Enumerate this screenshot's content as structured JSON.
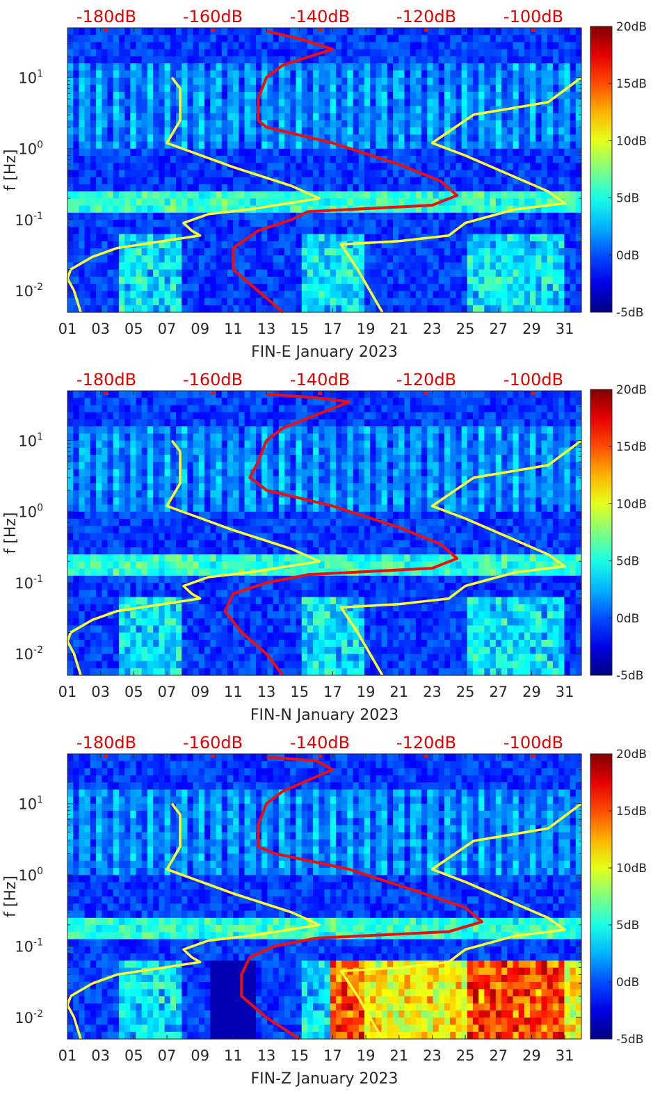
{
  "chart_data": [
    {
      "type": "heatmap",
      "station": "FIN-E",
      "xlabel": "FIN-E January 2023",
      "ylabel": "f [Hz]",
      "x_ticks": [
        "01",
        "03",
        "05",
        "07",
        "09",
        "11",
        "13",
        "15",
        "17",
        "19",
        "21",
        "23",
        "25",
        "27",
        "29",
        "31"
      ],
      "x_range_days": [
        1,
        32
      ],
      "y_scale": "log",
      "y_range_hz": [
        0.005,
        50
      ],
      "y_ticks": [
        {
          "value": 0.01,
          "base": "10",
          "exp": "-2"
        },
        {
          "value": 0.1,
          "base": "10",
          "exp": "-1"
        },
        {
          "value": 1,
          "base": "10",
          "exp": "0"
        },
        {
          "value": 10,
          "base": "10",
          "exp": "1"
        }
      ],
      "top_db_labels": [
        "-180dB",
        "-160dB",
        "-140dB",
        "-120dB",
        "-100dB"
      ],
      "colorbar": {
        "range_db": [
          -5,
          20
        ],
        "ticks": [
          "20dB",
          "15dB",
          "10dB",
          "5dB",
          "0dB",
          "-5dB"
        ]
      },
      "series": [
        {
          "name": "yellow noise model (left)",
          "color": "#ffff33",
          "points": [
            [
              7.3,
              10
            ],
            [
              7.8,
              7
            ],
            [
              7.8,
              2.5
            ],
            [
              7.0,
              1.2
            ],
            [
              11,
              0.55
            ],
            [
              14.5,
              0.3
            ],
            [
              16.2,
              0.2
            ],
            [
              12,
              0.14
            ],
            [
              9.5,
              0.12
            ],
            [
              8.0,
              0.09
            ],
            [
              8.5,
              0.07
            ],
            [
              9,
              0.06
            ],
            [
              4,
              0.04
            ],
            [
              2.5,
              0.03
            ],
            [
              1.2,
              0.02
            ],
            [
              1,
              0.015
            ],
            [
              1.4,
              0.01
            ],
            [
              1.8,
              0.005
            ]
          ]
        },
        {
          "name": "yellow noise model (right)",
          "color": "#ffff33",
          "points": [
            [
              32,
              10
            ],
            [
              30,
              4.5
            ],
            [
              25.5,
              3
            ],
            [
              23,
              1.2
            ],
            [
              25,
              0.8
            ],
            [
              30,
              0.25
            ],
            [
              31,
              0.17
            ],
            [
              28,
              0.14
            ],
            [
              25,
              0.09
            ],
            [
              24,
              0.06
            ],
            [
              21,
              0.05
            ],
            [
              17.5,
              0.045
            ],
            [
              18.5,
              0.02
            ],
            [
              20,
              0.005
            ]
          ]
        },
        {
          "name": "red median PSD",
          "color": "#e81010",
          "points": [
            [
              13,
              45
            ],
            [
              15,
              35
            ],
            [
              17,
              25
            ],
            [
              14,
              15
            ],
            [
              13,
              10
            ],
            [
              12.5,
              5
            ],
            [
              12.5,
              3
            ],
            [
              12.5,
              2.5
            ],
            [
              13,
              2
            ],
            [
              17,
              1.2
            ],
            [
              21,
              0.6
            ],
            [
              23.5,
              0.35
            ],
            [
              24.5,
              0.22
            ],
            [
              23,
              0.16
            ],
            [
              15.5,
              0.13
            ],
            [
              14.5,
              0.1
            ],
            [
              12.5,
              0.07
            ],
            [
              11,
              0.04
            ],
            [
              11,
              0.02
            ],
            [
              12.5,
              0.01
            ],
            [
              14,
              0.005
            ]
          ]
        }
      ]
    },
    {
      "type": "heatmap",
      "station": "FIN-N",
      "xlabel": "FIN-N January 2023",
      "ylabel": "f [Hz]",
      "x_ticks": [
        "01",
        "03",
        "05",
        "07",
        "09",
        "11",
        "13",
        "15",
        "17",
        "19",
        "21",
        "23",
        "25",
        "27",
        "29",
        "31"
      ],
      "x_range_days": [
        1,
        32
      ],
      "y_scale": "log",
      "y_range_hz": [
        0.005,
        50
      ],
      "y_ticks": [
        {
          "value": 0.01,
          "base": "10",
          "exp": "-2"
        },
        {
          "value": 0.1,
          "base": "10",
          "exp": "-1"
        },
        {
          "value": 1,
          "base": "10",
          "exp": "0"
        },
        {
          "value": 10,
          "base": "10",
          "exp": "1"
        }
      ],
      "top_db_labels": [
        "-180dB",
        "-160dB",
        "-140dB",
        "-120dB",
        "-100dB"
      ],
      "colorbar": {
        "range_db": [
          -5,
          20
        ],
        "ticks": [
          "20dB",
          "15dB",
          "10dB",
          "5dB",
          "0dB",
          "-5dB"
        ]
      },
      "series": [
        {
          "name": "yellow noise model (left)",
          "color": "#ffff33",
          "points": [
            [
              7.3,
              10
            ],
            [
              7.8,
              7
            ],
            [
              7.8,
              2.5
            ],
            [
              7.0,
              1.2
            ],
            [
              11,
              0.55
            ],
            [
              14.5,
              0.3
            ],
            [
              16.2,
              0.2
            ],
            [
              12,
              0.14
            ],
            [
              9.5,
              0.12
            ],
            [
              8.0,
              0.09
            ],
            [
              8.5,
              0.07
            ],
            [
              9,
              0.06
            ],
            [
              4,
              0.04
            ],
            [
              2.5,
              0.03
            ],
            [
              1.2,
              0.02
            ],
            [
              1,
              0.015
            ],
            [
              1.4,
              0.01
            ],
            [
              1.8,
              0.005
            ]
          ]
        },
        {
          "name": "yellow noise model (right)",
          "color": "#ffff33",
          "points": [
            [
              32,
              10
            ],
            [
              30,
              4.5
            ],
            [
              25.5,
              3
            ],
            [
              23,
              1.2
            ],
            [
              25,
              0.8
            ],
            [
              30,
              0.25
            ],
            [
              31,
              0.17
            ],
            [
              28,
              0.14
            ],
            [
              25,
              0.09
            ],
            [
              24,
              0.06
            ],
            [
              21,
              0.05
            ],
            [
              17.5,
              0.045
            ],
            [
              18.5,
              0.02
            ],
            [
              20,
              0.005
            ]
          ]
        },
        {
          "name": "red median PSD",
          "color": "#e81010",
          "points": [
            [
              13,
              45
            ],
            [
              16,
              40
            ],
            [
              18,
              35
            ],
            [
              14,
              15
            ],
            [
              13,
              10
            ],
            [
              12.5,
              5
            ],
            [
              12,
              3
            ],
            [
              12.5,
              2.5
            ],
            [
              13,
              2
            ],
            [
              17,
              1.2
            ],
            [
              21,
              0.6
            ],
            [
              23.5,
              0.35
            ],
            [
              24.5,
              0.22
            ],
            [
              23,
              0.16
            ],
            [
              15.5,
              0.13
            ],
            [
              13,
              0.1
            ],
            [
              11,
              0.07
            ],
            [
              10.5,
              0.04
            ],
            [
              11.5,
              0.02
            ],
            [
              13,
              0.01
            ],
            [
              14,
              0.005
            ]
          ]
        }
      ]
    },
    {
      "type": "heatmap",
      "station": "FIN-Z",
      "xlabel": "FIN-Z January 2023",
      "ylabel": "f [Hz]",
      "x_ticks": [
        "01",
        "03",
        "05",
        "07",
        "09",
        "11",
        "13",
        "15",
        "17",
        "19",
        "21",
        "23",
        "25",
        "27",
        "29",
        "31"
      ],
      "x_range_days": [
        1,
        32
      ],
      "y_scale": "log",
      "y_range_hz": [
        0.005,
        50
      ],
      "y_ticks": [
        {
          "value": 0.01,
          "base": "10",
          "exp": "-2"
        },
        {
          "value": 0.1,
          "base": "10",
          "exp": "-1"
        },
        {
          "value": 1,
          "base": "10",
          "exp": "0"
        },
        {
          "value": 10,
          "base": "10",
          "exp": "1"
        }
      ],
      "top_db_labels": [
        "-180dB",
        "-160dB",
        "-140dB",
        "-120dB",
        "-100dB"
      ],
      "colorbar": {
        "range_db": [
          -5,
          20
        ],
        "ticks": [
          "20dB",
          "15dB",
          "10dB",
          "5dB",
          "0dB",
          "-5dB"
        ]
      },
      "series": [
        {
          "name": "yellow noise model (left)",
          "color": "#ffff33",
          "points": [
            [
              7.3,
              10
            ],
            [
              7.8,
              7
            ],
            [
              7.8,
              2.5
            ],
            [
              7.0,
              1.2
            ],
            [
              11,
              0.55
            ],
            [
              14.5,
              0.3
            ],
            [
              16.2,
              0.2
            ],
            [
              12,
              0.14
            ],
            [
              9.5,
              0.12
            ],
            [
              8.0,
              0.09
            ],
            [
              8.5,
              0.07
            ],
            [
              9,
              0.06
            ],
            [
              4,
              0.04
            ],
            [
              2.5,
              0.03
            ],
            [
              1.2,
              0.02
            ],
            [
              1,
              0.015
            ],
            [
              1.4,
              0.01
            ],
            [
              1.8,
              0.005
            ]
          ]
        },
        {
          "name": "yellow noise model (right)",
          "color": "#ffff33",
          "points": [
            [
              32,
              10
            ],
            [
              30,
              4.5
            ],
            [
              25.5,
              3
            ],
            [
              23,
              1.2
            ],
            [
              25,
              0.8
            ],
            [
              30,
              0.25
            ],
            [
              31,
              0.17
            ],
            [
              28,
              0.14
            ],
            [
              25,
              0.09
            ],
            [
              24,
              0.06
            ],
            [
              21,
              0.05
            ],
            [
              17.5,
              0.045
            ],
            [
              18.5,
              0.02
            ],
            [
              20,
              0.005
            ]
          ]
        },
        {
          "name": "red median PSD",
          "color": "#e81010",
          "points": [
            [
              13,
              45
            ],
            [
              16,
              40
            ],
            [
              17,
              30
            ],
            [
              14,
              15
            ],
            [
              13,
              10
            ],
            [
              12.5,
              5
            ],
            [
              12.5,
              3
            ],
            [
              12.5,
              2.5
            ],
            [
              13.5,
              2
            ],
            [
              18,
              1.2
            ],
            [
              22,
              0.6
            ],
            [
              25,
              0.35
            ],
            [
              26,
              0.22
            ],
            [
              24,
              0.16
            ],
            [
              16,
              0.13
            ],
            [
              13.5,
              0.1
            ],
            [
              12,
              0.07
            ],
            [
              11.5,
              0.04
            ],
            [
              11.5,
              0.02
            ],
            [
              13,
              0.01
            ],
            [
              15,
              0.005
            ]
          ]
        }
      ]
    }
  ]
}
